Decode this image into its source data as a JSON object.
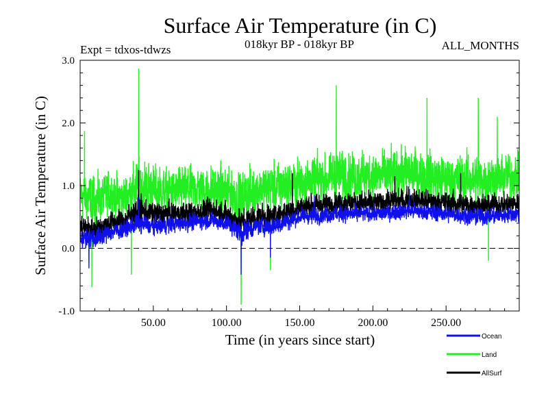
{
  "chart_data": {
    "type": "line",
    "title": "Surface Air Temperature (in C)",
    "subtitle_left": "Expt = tdxos-tdwzs",
    "subtitle_center": "018kyr BP - 018kyr BP",
    "subtitle_right": "ALL_MONTHS",
    "xlabel": "Time (in years since start)",
    "ylabel": "Surface Air Temperature (in C)",
    "xlim": [
      0,
      300
    ],
    "ylim": [
      -1.0,
      3.0
    ],
    "xticks": [
      50,
      100,
      150,
      200,
      250
    ],
    "xtick_labels": [
      "50.00",
      "100.00",
      "150.00",
      "200.00",
      "250.00"
    ],
    "yticks": [
      -1.0,
      0.0,
      1.0,
      2.0,
      3.0
    ],
    "ytick_labels": [
      "-1.0",
      "0.0",
      "1.0",
      "2.0",
      "3.0"
    ],
    "zero_line": true,
    "grid": false,
    "legend_position": "bottom-right",
    "series": [
      {
        "name": "Land",
        "color": "#22ee22",
        "resolution": "monthly",
        "keypoints": [
          {
            "x": 0,
            "mean": 0.85,
            "amp": 0.55
          },
          {
            "x": 10,
            "mean": 0.75,
            "amp": 0.6
          },
          {
            "x": 20,
            "mean": 0.85,
            "amp": 0.55
          },
          {
            "x": 30,
            "mean": 0.8,
            "amp": 0.55
          },
          {
            "x": 40,
            "mean": 1.0,
            "amp": 0.7
          },
          {
            "x": 50,
            "mean": 0.95,
            "amp": 0.6
          },
          {
            "x": 60,
            "mean": 0.9,
            "amp": 0.55
          },
          {
            "x": 80,
            "mean": 0.95,
            "amp": 0.55
          },
          {
            "x": 100,
            "mean": 0.9,
            "amp": 0.6
          },
          {
            "x": 110,
            "mean": 0.75,
            "amp": 0.7
          },
          {
            "x": 120,
            "mean": 0.95,
            "amp": 0.55
          },
          {
            "x": 130,
            "mean": 0.95,
            "amp": 0.6
          },
          {
            "x": 150,
            "mean": 1.05,
            "amp": 0.6
          },
          {
            "x": 175,
            "mean": 1.15,
            "amp": 0.6
          },
          {
            "x": 200,
            "mean": 1.15,
            "amp": 0.6
          },
          {
            "x": 225,
            "mean": 1.2,
            "amp": 0.6
          },
          {
            "x": 250,
            "mean": 1.1,
            "amp": 0.6
          },
          {
            "x": 275,
            "mean": 1.1,
            "amp": 0.6
          },
          {
            "x": 300,
            "mean": 1.15,
            "amp": 0.55
          }
        ],
        "extremes": [
          {
            "x": 3,
            "y": 1.87
          },
          {
            "x": 8,
            "y": -0.62
          },
          {
            "x": 40,
            "y": 2.87
          },
          {
            "x": 35,
            "y": -0.42
          },
          {
            "x": 110,
            "y": -0.9
          },
          {
            "x": 130,
            "y": -0.35
          },
          {
            "x": 175,
            "y": 2.6
          },
          {
            "x": 237,
            "y": 2.4
          },
          {
            "x": 272,
            "y": 2.4
          },
          {
            "x": 285,
            "y": 2.1
          },
          {
            "x": 279,
            "y": -0.2
          }
        ]
      },
      {
        "name": "Ocean",
        "color": "#1010ee",
        "resolution": "monthly",
        "keypoints": [
          {
            "x": 0,
            "mean": 0.18,
            "amp": 0.22
          },
          {
            "x": 10,
            "mean": 0.15,
            "amp": 0.25
          },
          {
            "x": 20,
            "mean": 0.25,
            "amp": 0.2
          },
          {
            "x": 30,
            "mean": 0.3,
            "amp": 0.2
          },
          {
            "x": 40,
            "mean": 0.4,
            "amp": 0.25
          },
          {
            "x": 50,
            "mean": 0.35,
            "amp": 0.2
          },
          {
            "x": 70,
            "mean": 0.4,
            "amp": 0.2
          },
          {
            "x": 90,
            "mean": 0.45,
            "amp": 0.2
          },
          {
            "x": 100,
            "mean": 0.4,
            "amp": 0.2
          },
          {
            "x": 110,
            "mean": 0.25,
            "amp": 0.3
          },
          {
            "x": 120,
            "mean": 0.35,
            "amp": 0.2
          },
          {
            "x": 130,
            "mean": 0.35,
            "amp": 0.25
          },
          {
            "x": 150,
            "mean": 0.5,
            "amp": 0.2
          },
          {
            "x": 175,
            "mean": 0.55,
            "amp": 0.2
          },
          {
            "x": 200,
            "mean": 0.55,
            "amp": 0.2
          },
          {
            "x": 225,
            "mean": 0.6,
            "amp": 0.2
          },
          {
            "x": 250,
            "mean": 0.55,
            "amp": 0.2
          },
          {
            "x": 275,
            "mean": 0.5,
            "amp": 0.2
          },
          {
            "x": 300,
            "mean": 0.55,
            "amp": 0.2
          }
        ],
        "extremes": [
          {
            "x": 6,
            "y": -0.32
          },
          {
            "x": 40,
            "y": 0.82
          },
          {
            "x": 110,
            "y": -0.42
          },
          {
            "x": 130,
            "y": -0.15
          },
          {
            "x": 160,
            "y": 0.85
          },
          {
            "x": 225,
            "y": 0.95
          }
        ]
      },
      {
        "name": "AllSurf",
        "color": "#000000",
        "resolution": "monthly",
        "keypoints": [
          {
            "x": 0,
            "mean": 0.35,
            "amp": 0.28
          },
          {
            "x": 10,
            "mean": 0.3,
            "amp": 0.3
          },
          {
            "x": 20,
            "mean": 0.4,
            "amp": 0.28
          },
          {
            "x": 30,
            "mean": 0.45,
            "amp": 0.28
          },
          {
            "x": 40,
            "mean": 0.6,
            "amp": 0.35
          },
          {
            "x": 50,
            "mean": 0.55,
            "amp": 0.28
          },
          {
            "x": 70,
            "mean": 0.55,
            "amp": 0.28
          },
          {
            "x": 90,
            "mean": 0.6,
            "amp": 0.28
          },
          {
            "x": 100,
            "mean": 0.55,
            "amp": 0.28
          },
          {
            "x": 110,
            "mean": 0.4,
            "amp": 0.35
          },
          {
            "x": 120,
            "mean": 0.5,
            "amp": 0.28
          },
          {
            "x": 130,
            "mean": 0.5,
            "amp": 0.3
          },
          {
            "x": 150,
            "mean": 0.65,
            "amp": 0.28
          },
          {
            "x": 175,
            "mean": 0.72,
            "amp": 0.28
          },
          {
            "x": 200,
            "mean": 0.72,
            "amp": 0.28
          },
          {
            "x": 225,
            "mean": 0.78,
            "amp": 0.28
          },
          {
            "x": 250,
            "mean": 0.72,
            "amp": 0.28
          },
          {
            "x": 275,
            "mean": 0.68,
            "amp": 0.28
          },
          {
            "x": 300,
            "mean": 0.72,
            "amp": 0.28
          }
        ],
        "extremes": [
          {
            "x": 40,
            "y": 1.25
          },
          {
            "x": 145,
            "y": 1.2
          },
          {
            "x": 215,
            "y": 1.15
          },
          {
            "x": 260,
            "y": 1.2
          }
        ]
      }
    ]
  }
}
